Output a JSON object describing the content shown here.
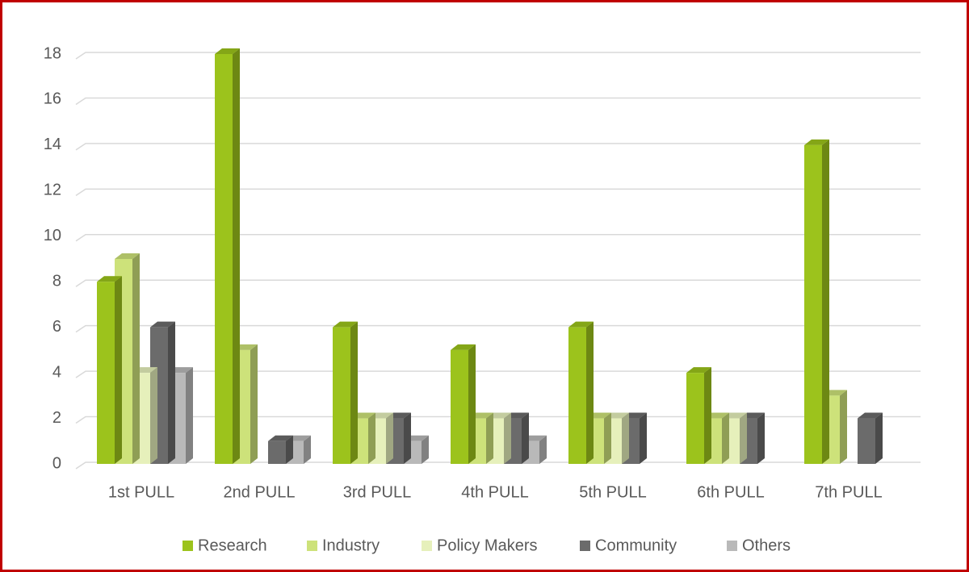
{
  "chart_data": {
    "type": "bar3d",
    "categories": [
      "1st PULL",
      "2nd PULL",
      "3rd PULL",
      "4th PULL",
      "5th PULL",
      "6th PULL",
      "7th PULL"
    ],
    "series": [
      {
        "name": "Research",
        "color": "#9cc31c",
        "values": [
          8,
          18,
          6,
          5,
          6,
          4,
          14
        ]
      },
      {
        "name": "Industry",
        "color": "#cde27a",
        "values": [
          9,
          5,
          2,
          2,
          2,
          2,
          3
        ]
      },
      {
        "name": "Policy Makers",
        "color": "#e6f0bb",
        "values": [
          4,
          0,
          2,
          2,
          2,
          2,
          0
        ]
      },
      {
        "name": "Community",
        "color": "#6b6b6b",
        "values": [
          6,
          1,
          2,
          2,
          2,
          2,
          2
        ]
      },
      {
        "name": "Others",
        "color": "#b9b9b9",
        "values": [
          4,
          1,
          1,
          1,
          0,
          0,
          0
        ]
      }
    ],
    "ylim": [
      0,
      18
    ],
    "yticks": [
      0,
      2,
      4,
      6,
      8,
      10,
      12,
      14,
      16,
      18
    ],
    "grid": true,
    "legend": "bottom"
  }
}
